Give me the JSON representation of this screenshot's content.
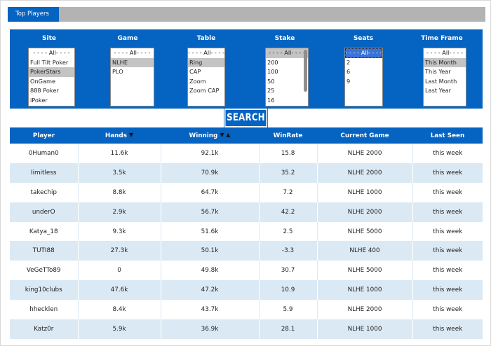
{
  "header": {
    "tab_label": "Top Players"
  },
  "filters": [
    {
      "label": "Site",
      "options": [
        {
          "text": "- - - - All- - - -",
          "state": "normal",
          "all": true
        },
        {
          "text": "Full Tilt Poker",
          "state": "normal"
        },
        {
          "text": "PokerStars",
          "state": "selected"
        },
        {
          "text": "OnGame",
          "state": "normal"
        },
        {
          "text": "888 Poker",
          "state": "normal"
        },
        {
          "text": "iPoker",
          "state": "normal"
        }
      ],
      "scrollbar": false
    },
    {
      "label": "Game",
      "options": [
        {
          "text": "- - - - All- - - -",
          "state": "normal",
          "all": true
        },
        {
          "text": "NLHE",
          "state": "selected"
        },
        {
          "text": "PLO",
          "state": "normal"
        }
      ],
      "scrollbar": false
    },
    {
      "label": "Table",
      "options": [
        {
          "text": "- - - - All- - - -",
          "state": "normal",
          "all": true
        },
        {
          "text": "Ring",
          "state": "selected"
        },
        {
          "text": "CAP",
          "state": "normal"
        },
        {
          "text": "Zoom",
          "state": "normal"
        },
        {
          "text": "Zoom CAP",
          "state": "normal"
        }
      ],
      "scrollbar": false
    },
    {
      "label": "Stake",
      "options": [
        {
          "text": "- - - - All- - - -",
          "state": "selected",
          "all": true
        },
        {
          "text": "200",
          "state": "normal"
        },
        {
          "text": "100",
          "state": "normal"
        },
        {
          "text": "50",
          "state": "normal"
        },
        {
          "text": "25",
          "state": "normal"
        },
        {
          "text": "16",
          "state": "normal"
        }
      ],
      "scrollbar": true
    },
    {
      "label": "Seats",
      "options": [
        {
          "text": "- - - - All- - - -",
          "state": "highlighted",
          "all": true
        },
        {
          "text": "2",
          "state": "normal"
        },
        {
          "text": "6",
          "state": "normal"
        },
        {
          "text": "9",
          "state": "normal"
        }
      ],
      "scrollbar": false
    },
    {
      "label": "Time Frame",
      "options": [
        {
          "text": "- - - - All- - - -",
          "state": "normal",
          "all": true
        },
        {
          "text": "This Month",
          "state": "selected"
        },
        {
          "text": "This Year",
          "state": "normal"
        },
        {
          "text": "Last Month",
          "state": "normal"
        },
        {
          "text": "Last Year",
          "state": "normal"
        }
      ],
      "scrollbar": false
    }
  ],
  "search": {
    "button_label": "SEARCH"
  },
  "table": {
    "columns": [
      {
        "label": "Player",
        "sort_icon": ""
      },
      {
        "label": "Hands",
        "sort_icon": "▼"
      },
      {
        "label": "Winning",
        "sort_icon": "▼ ▲"
      },
      {
        "label": "WinRate",
        "sort_icon": ""
      },
      {
        "label": "Current Game",
        "sort_icon": ""
      },
      {
        "label": "Last Seen",
        "sort_icon": ""
      }
    ],
    "sort_icon_names": [
      "",
      "sort-desc-icon",
      "sort-desc-asc-icon",
      "",
      "",
      ""
    ],
    "rows": [
      [
        "0Human0",
        "11.6k",
        "92.1k",
        "15.8",
        "NLHE 2000",
        "this week"
      ],
      [
        "Iimitless",
        "3.5k",
        "70.9k",
        "35.2",
        "NLHE 2000",
        "this week"
      ],
      [
        "takechip",
        "8.8k",
        "64.7k",
        "7.2",
        "NLHE 1000",
        "this week"
      ],
      [
        "underO",
        "2.9k",
        "56.7k",
        "42.2",
        "NLHE 2000",
        "this week"
      ],
      [
        "Katya_18",
        "9.3k",
        "51.6k",
        "2.5",
        "NLHE 5000",
        "this week"
      ],
      [
        "TUTI88",
        "27.3k",
        "50.1k",
        "-3.3",
        "NLHE 400",
        "this week"
      ],
      [
        "VeGeTTo89",
        "0",
        "49.8k",
        "30.7",
        "NLHE 5000",
        "this week"
      ],
      [
        "king10clubs",
        "47.6k",
        "47.2k",
        "10.9",
        "NLHE 1000",
        "this week"
      ],
      [
        "hhecklen",
        "8.4k",
        "43.7k",
        "5.9",
        "NLHE 2000",
        "this week"
      ],
      [
        "Katz0r",
        "5.9k",
        "36.9k",
        "28.1",
        "NLHE 1000",
        "this week"
      ]
    ]
  },
  "colors": {
    "accent": "#0563c1",
    "row_alt": "#dbe9f4",
    "tab_strip": "#b3b3b3",
    "selected_option": "#c4c4c4",
    "highlight_option": "#3a72d8"
  }
}
